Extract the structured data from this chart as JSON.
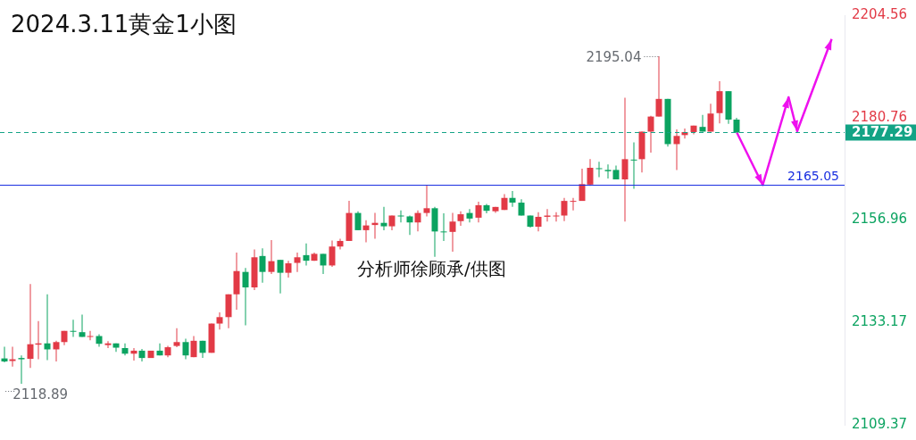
{
  "chart_data": {
    "type": "candlestick",
    "title": "2024.3.11黄金1小图",
    "categories": [
      null,
      null,
      null,
      null,
      null,
      null,
      null,
      null,
      null,
      null,
      null,
      null,
      null,
      null,
      null,
      null,
      null,
      null,
      null,
      null,
      null,
      null,
      null,
      null,
      null,
      null,
      null,
      null,
      null,
      null,
      null,
      null,
      null,
      null,
      null,
      null,
      null,
      null,
      null,
      null,
      null,
      null,
      null,
      null,
      null,
      null,
      null,
      null,
      null,
      null,
      null,
      null,
      null,
      null,
      null,
      null,
      null,
      null,
      null,
      null,
      null,
      null,
      null,
      null,
      null,
      null,
      null,
      null,
      null,
      null,
      null,
      null,
      null,
      null,
      null,
      null,
      null,
      null,
      null,
      null,
      null,
      null,
      null,
      null,
      null,
      null,
      null,
      null,
      null,
      null,
      null,
      null,
      null,
      null,
      null,
      null,
      null,
      null
    ],
    "series": [
      {
        "type": "line",
        "color": "#ee11ee",
        "values": [
          null,
          null,
          null,
          null,
          null,
          null,
          null,
          null,
          null,
          null,
          null,
          null,
          null,
          null,
          null,
          null,
          null,
          null,
          null,
          null,
          null,
          null,
          null,
          null,
          null,
          null,
          null,
          null,
          null,
          null,
          null,
          null,
          null,
          null,
          null,
          null,
          null,
          null,
          null,
          null,
          null,
          null,
          null,
          null,
          null,
          null,
          null,
          null,
          null,
          null,
          null,
          null,
          null,
          null,
          null,
          null,
          null,
          null,
          null,
          null,
          null,
          null,
          null,
          null,
          null,
          null,
          null,
          null,
          null,
          null,
          null,
          null,
          null,
          null,
          null,
          null,
          null,
          null,
          null,
          null,
          null,
          null,
          null,
          null,
          null,
          2177.3,
          null,
          null,
          2165.1,
          null,
          null,
          2185.5,
          2177.6,
          null,
          null,
          null,
          2199.0,
          null
        ]
      }
    ],
    "marker": "none",
    "ohlc": [
      [
        2124.8,
        2127.5,
        2123.9,
        2124.1
      ],
      [
        2124.2,
        2127.5,
        2122.9,
        2124.6
      ],
      [
        2124.9,
        2125.5,
        2118.89,
        2124.6
      ],
      [
        2124.7,
        2142.1,
        2122.6,
        2128.1
      ],
      [
        2128.0,
        2133.5,
        2124.6,
        2128.3
      ],
      [
        2128.3,
        2139.7,
        2124.4,
        2126.9
      ],
      [
        2126.9,
        2128.9,
        2124.1,
        2128.6
      ],
      [
        2128.6,
        2131.2,
        2127.9,
        2131.2
      ],
      [
        2131.2,
        2133.8,
        2129.8,
        2131.0
      ],
      [
        2130.9,
        2135.0,
        2129.8,
        2129.8
      ],
      [
        2129.8,
        2131.2,
        2129.0,
        2130.0
      ],
      [
        2130.0,
        2130.4,
        2127.5,
        2128.2
      ],
      [
        2127.9,
        2128.8,
        2127.2,
        2128.3
      ],
      [
        2128.3,
        2128.3,
        2126.3,
        2127.3
      ],
      [
        2127.2,
        2128.3,
        2125.5,
        2125.9
      ],
      [
        2125.9,
        2127.2,
        2124.3,
        2126.6
      ],
      [
        2126.6,
        2127.0,
        2124.1,
        2124.9
      ],
      [
        2124.9,
        2126.6,
        2124.9,
        2126.6
      ],
      [
        2126.6,
        2128.3,
        2125.5,
        2125.5
      ],
      [
        2125.5,
        2127.7,
        2125.1,
        2127.4
      ],
      [
        2127.7,
        2131.8,
        2127.4,
        2128.6
      ],
      [
        2128.6,
        2129.4,
        2124.6,
        2125.5
      ],
      [
        2125.1,
        2130.0,
        2125.1,
        2128.9
      ],
      [
        2128.9,
        2128.9,
        2124.9,
        2126.1
      ],
      [
        2126.1,
        2132.9,
        2126.1,
        2132.9
      ],
      [
        2132.9,
        2135.5,
        2131.5,
        2134.4
      ],
      [
        2134.4,
        2139.7,
        2131.8,
        2139.7
      ],
      [
        2139.7,
        2149.4,
        2136.1,
        2145.1
      ],
      [
        2144.9,
        2145.8,
        2132.5,
        2141.3
      ],
      [
        2141.3,
        2150.1,
        2140.7,
        2148.3
      ],
      [
        2148.6,
        2150.4,
        2142.4,
        2144.9
      ],
      [
        2144.9,
        2152.3,
        2144.4,
        2147.4
      ],
      [
        2147.7,
        2147.7,
        2139.9,
        2144.7
      ],
      [
        2144.7,
        2147.5,
        2143.6,
        2146.9
      ],
      [
        2147.0,
        2149.4,
        2144.9,
        2148.3
      ],
      [
        2148.8,
        2151.5,
        2146.4,
        2147.5
      ],
      [
        2147.5,
        2149.4,
        2147.5,
        2149.1
      ],
      [
        2149.1,
        2149.1,
        2144.4,
        2146.4
      ],
      [
        2146.4,
        2152.2,
        2146.1,
        2150.8
      ],
      [
        2150.8,
        2152.6,
        2150.1,
        2152.1
      ],
      [
        2152.1,
        2161.4,
        2152.1,
        2158.6
      ],
      [
        2158.6,
        2159.0,
        2154.6,
        2154.6
      ],
      [
        2154.6,
        2156.9,
        2151.8,
        2155.7
      ],
      [
        2155.8,
        2158.6,
        2152.6,
        2156.3
      ],
      [
        2156.3,
        2160.0,
        2154.6,
        2155.5
      ],
      [
        2155.5,
        2158.0,
        2154.6,
        2158.0
      ],
      [
        2158.0,
        2159.2,
        2156.4,
        2157.8
      ],
      [
        2157.8,
        2158.0,
        2153.5,
        2156.4
      ],
      [
        2156.4,
        2159.2,
        2154.3,
        2158.6
      ],
      [
        2158.6,
        2165.1,
        2157.8,
        2159.7
      ],
      [
        2159.7,
        2160.0,
        2148.4,
        2154.3
      ],
      [
        2154.3,
        2158.5,
        2152.1,
        2154.2
      ],
      [
        2154.2,
        2158.6,
        2149.6,
        2156.6
      ],
      [
        2156.7,
        2159.0,
        2155.6,
        2158.3
      ],
      [
        2158.6,
        2159.5,
        2156.4,
        2157.3
      ],
      [
        2157.5,
        2161.2,
        2156.4,
        2160.4
      ],
      [
        2160.4,
        2160.7,
        2158.5,
        2159.1
      ],
      [
        2159.0,
        2160.0,
        2158.6,
        2160.0
      ],
      [
        2159.3,
        2163.0,
        2159.3,
        2162.1
      ],
      [
        2162.1,
        2163.7,
        2160.0,
        2161.0
      ],
      [
        2161.0,
        2161.8,
        2158.0,
        2158.0
      ],
      [
        2158.0,
        2158.0,
        2155.2,
        2155.4
      ],
      [
        2155.4,
        2158.8,
        2154.3,
        2157.7
      ],
      [
        2157.7,
        2159.5,
        2156.6,
        2158.0
      ],
      [
        2157.8,
        2158.8,
        2156.6,
        2158.0
      ],
      [
        2158.0,
        2162.1,
        2156.7,
        2161.4
      ],
      [
        2161.3,
        2162.1,
        2159.2,
        2161.4
      ],
      [
        2161.4,
        2168.9,
        2161.4,
        2165.3
      ],
      [
        2165.2,
        2171.1,
        2164.9,
        2169.1
      ],
      [
        2169.0,
        2170.5,
        2166.9,
        2168.8
      ],
      [
        2168.6,
        2169.9,
        2166.6,
        2168.3
      ],
      [
        2168.6,
        2169.6,
        2166.4,
        2166.4
      ],
      [
        2166.4,
        2185.4,
        2156.6,
        2171.1
      ],
      [
        2171.0,
        2175.0,
        2164.2,
        2170.9
      ],
      [
        2171.1,
        2177.5,
        2168.0,
        2177.5
      ],
      [
        2177.5,
        2181.2,
        2172.6,
        2181.0
      ],
      [
        2181.0,
        2195.04,
        2181.0,
        2185.1
      ],
      [
        2185.1,
        2185.1,
        2174.0,
        2174.6
      ],
      [
        2174.6,
        2178.0,
        2168.6,
        2176.5
      ],
      [
        2176.7,
        2178.2,
        2175.9,
        2177.4
      ],
      [
        2177.4,
        2178.9,
        2176.9,
        2178.9
      ],
      [
        2178.6,
        2181.4,
        2177.5,
        2177.5
      ],
      [
        2177.5,
        2184.0,
        2177.5,
        2181.7
      ],
      [
        2181.8,
        2189.2,
        2179.4,
        2186.9
      ],
      [
        2186.9,
        2186.9,
        2179.3,
        2180.3
      ],
      [
        2180.3,
        2180.7,
        2177.29,
        2177.29
      ],
      null,
      null,
      null,
      null,
      null,
      null,
      null,
      null,
      null,
      null,
      null,
      null
    ],
    "colors": [
      "#0ba360",
      "#e23a46",
      "#0ba360",
      "#e23a46",
      "#e23a46",
      "#0ba360",
      "#e23a46",
      "#e23a46",
      "#0ba360",
      "#0ba360",
      "#e23a46",
      "#0ba360",
      "#e23a46",
      "#0ba360",
      "#0ba360",
      "#e23a46",
      "#0ba360",
      "#e23a46",
      "#0ba360",
      "#e23a46",
      "#e23a46",
      "#0ba360",
      "#e23a46",
      "#0ba360",
      "#e23a46",
      "#e23a46",
      "#e23a46",
      "#e23a46",
      "#0ba360",
      "#e23a46",
      "#0ba360",
      "#e23a46",
      "#0ba360",
      "#e23a46",
      "#e23a46",
      "#0ba360",
      "#e23a46",
      "#0ba360",
      "#e23a46",
      "#e23a46",
      "#e23a46",
      "#0ba360",
      "#e23a46",
      "#e23a46",
      "#0ba360",
      "#e23a46",
      "#0ba360",
      "#0ba360",
      "#e23a46",
      "#e23a46",
      "#0ba360",
      "#0ba360",
      "#e23a46",
      "#e23a46",
      "#0ba360",
      "#e23a46",
      "#0ba360",
      "#e23a46",
      "#e23a46",
      "#0ba360",
      "#0ba360",
      "#0ba360",
      "#e23a46",
      "#e23a46",
      "#e23a46",
      "#e23a46",
      "#e23a46",
      "#e23a46",
      "#e23a46",
      "#0ba360",
      "#0ba360",
      "#0ba360",
      "#e23a46",
      "#0ba360",
      "#e23a46",
      "#e23a46",
      "#e23a46",
      "#0ba360",
      "#e23a46",
      "#e23a46",
      "#e23a46",
      "#0ba360",
      "#e23a46",
      "#e23a46",
      "#0ba360",
      "#0ba360",
      null,
      null,
      null,
      null,
      null,
      null,
      null,
      null,
      null,
      null,
      null,
      null
    ],
    "ylim": [
      2109.37,
      2204.56
    ],
    "yticks": [
      2109.37,
      2133.17,
      2156.96,
      2180.76,
      2204.56
    ],
    "tick_labels": "y",
    "ref_lines": [
      {
        "axis": "y",
        "value": 2165.05,
        "label": "2165.05",
        "color": "#1a2fe0",
        "line_style": "solid"
      },
      {
        "axis": "y",
        "value": 2177.29,
        "label": "2177.29",
        "color": "#13a385",
        "line_style": "dashed"
      }
    ],
    "annotations": [
      "2195.04",
      "2118.89",
      "分析师徐顾承/供图"
    ]
  }
}
